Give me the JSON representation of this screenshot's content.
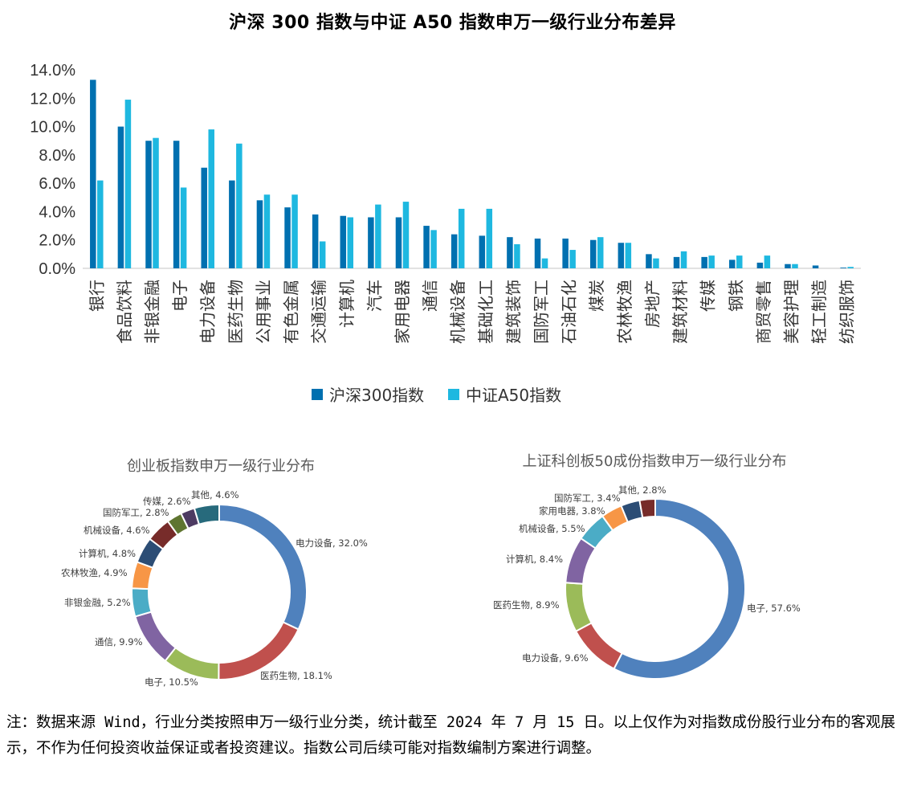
{
  "title": "沪深 300 指数与中证 A50 指数申万一级行业分布差异",
  "colors": {
    "series1": "#0070B0",
    "series2": "#1EB8E0",
    "axis": "#D9D9D9"
  },
  "chart_data": [
    {
      "type": "bar",
      "title": "沪深 300 指数与中证 A50 指数申万一级行业分布差异",
      "categories": [
        "银行",
        "食品饮料",
        "非银金融",
        "电子",
        "电力设备",
        "医药生物",
        "公用事业",
        "有色金属",
        "交通运输",
        "计算机",
        "汽车",
        "家用电器",
        "通信",
        "机械设备",
        "基础化工",
        "建筑装饰",
        "国防军工",
        "石油石化",
        "煤炭",
        "农林牧渔",
        "房地产",
        "建筑材料",
        "传媒",
        "钢铁",
        "商贸零售",
        "美容护理",
        "轻工制造",
        "纺织服饰"
      ],
      "series": [
        {
          "name": "沪深300指数",
          "values": [
            13.3,
            10.0,
            9.0,
            9.0,
            7.1,
            6.2,
            4.8,
            4.3,
            3.8,
            3.7,
            3.6,
            3.6,
            3.0,
            2.4,
            2.3,
            2.2,
            2.1,
            2.1,
            2.0,
            1.8,
            1.0,
            0.8,
            0.8,
            0.6,
            0.4,
            0.3,
            0.2,
            0.05
          ]
        },
        {
          "name": "中证A50指数",
          "values": [
            6.2,
            11.9,
            9.2,
            5.7,
            9.8,
            8.8,
            5.2,
            5.2,
            1.9,
            3.6,
            4.5,
            4.7,
            2.7,
            4.2,
            4.2,
            1.7,
            0.7,
            1.3,
            2.2,
            1.8,
            0.7,
            1.2,
            0.9,
            0.9,
            0.9,
            0.3,
            0.0,
            0.1
          ]
        }
      ],
      "yticks": [
        "0.0%",
        "2.0%",
        "4.0%",
        "6.0%",
        "8.0%",
        "10.0%",
        "12.0%",
        "14.0%"
      ],
      "ylim": [
        0,
        14
      ],
      "legend": "bottom-center",
      "grid": false
    },
    {
      "type": "pie",
      "title": "创业板指数申万一级行业分布",
      "labels": [
        "电力设备",
        "医药生物",
        "电子",
        "通信",
        "非银金融",
        "农林牧渔",
        "计算机",
        "机械设备",
        "国防军工",
        "传媒",
        "其他"
      ],
      "values": [
        32.0,
        18.1,
        10.5,
        9.9,
        5.2,
        4.9,
        4.8,
        4.6,
        2.8,
        2.6,
        4.6
      ],
      "value_labels": [
        "电力设备, 32.0%",
        "医药生物, 18.1%",
        "电子, 10.5%",
        "通信, 9.9%",
        "非银金融, 5.2%",
        "农林牧渔, 4.9%",
        "计算机, 4.8%",
        "机械设备, 4.6%",
        "国防军工, 2.8%",
        "传媒, 2.6%",
        "其他, 4.6%"
      ],
      "colors": [
        "#4F81BD",
        "#C0504D",
        "#9BBB59",
        "#8064A2",
        "#4BACC6",
        "#F79646",
        "#2C4D75",
        "#772C2A",
        "#5F7530",
        "#4D3B62",
        "#276A7C"
      ],
      "style": "donut"
    },
    {
      "type": "pie",
      "title": "上证科创板50成份指数申万一级行业分布",
      "labels": [
        "电子",
        "电力设备",
        "医药生物",
        "计算机",
        "机械设备",
        "家用电器",
        "国防军工",
        "其他"
      ],
      "values": [
        57.6,
        9.6,
        8.9,
        8.4,
        5.5,
        3.8,
        3.4,
        2.8
      ],
      "value_labels": [
        "电子, 57.6%",
        "电力设备, 9.6%",
        "医药生物, 8.9%",
        "计算机, 8.4%",
        "机械设备, 5.5%",
        "家用电器, 3.8%",
        "国防军工, 3.4%",
        "其他, 2.8%"
      ],
      "colors": [
        "#4F81BD",
        "#C0504D",
        "#9BBB59",
        "#8064A2",
        "#4BACC6",
        "#F79646",
        "#2C4D75",
        "#772C2A"
      ],
      "style": "donut"
    }
  ],
  "note": "注：数据来源 Wind，行业分类按照申万一级行业分类，统计截至 2024 年 7 月 15 日。以上仅作为对指数成份股行业分布的客观展示，不作为任何投资收益保证或者投资建议。指数公司后续可能对指数编制方案进行调整。"
}
